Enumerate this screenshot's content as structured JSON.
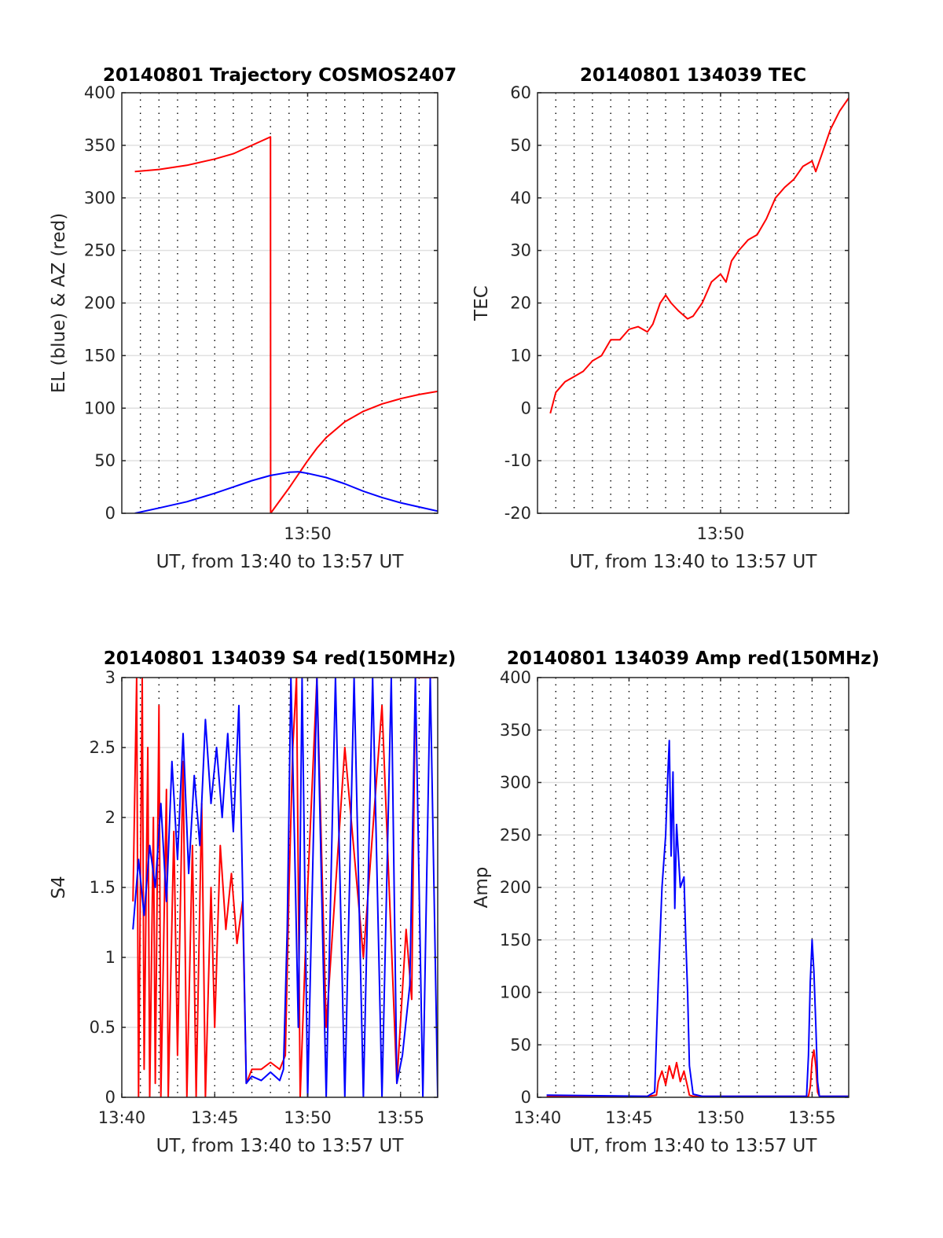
{
  "chart_data": [
    {
      "type": "line",
      "title": "20140801 Trajectory COSMOS2407",
      "xlabel": "UT, from 13:40 to 13:57 UT",
      "ylabel": "EL (blue) & AZ (red)",
      "xlim": [
        0,
        17
      ],
      "ylim": [
        0,
        400
      ],
      "x_ticks": [
        {
          "x": 10,
          "label": "13:50"
        }
      ],
      "y_ticks": [
        {
          "y": 0,
          "label": "0"
        },
        {
          "y": 50,
          "label": "50"
        },
        {
          "y": 100,
          "label": "100"
        },
        {
          "y": 150,
          "label": "150"
        },
        {
          "y": 200,
          "label": "200"
        },
        {
          "y": 250,
          "label": "250"
        },
        {
          "y": 300,
          "label": "300"
        },
        {
          "y": 350,
          "label": "350"
        },
        {
          "y": 400,
          "label": "400"
        }
      ],
      "grid": {
        "horizontal": true,
        "vertical_dotted_step": 1
      },
      "series": [
        {
          "color": "#ff0000",
          "points": [
            [
              0.7,
              325
            ],
            [
              2,
              327
            ],
            [
              3.5,
              331
            ],
            [
              5,
              337
            ],
            [
              6,
              342
            ],
            [
              7,
              350
            ],
            [
              7.5,
              354
            ],
            [
              8,
              358
            ],
            [
              8.01,
              0
            ],
            [
              8.5,
              12
            ],
            [
              9,
              24
            ],
            [
              9.5,
              37
            ],
            [
              10,
              50
            ],
            [
              10.5,
              62
            ],
            [
              11,
              72
            ],
            [
              12,
              87
            ],
            [
              13,
              97
            ],
            [
              14,
              104
            ],
            [
              15,
              109
            ],
            [
              16,
              113
            ],
            [
              17,
              116
            ]
          ]
        },
        {
          "color": "#0000ff",
          "points": [
            [
              0.7,
              0
            ],
            [
              2,
              5
            ],
            [
              3.5,
              11
            ],
            [
              5,
              19
            ],
            [
              6,
              25
            ],
            [
              7,
              31
            ],
            [
              8,
              36
            ],
            [
              9,
              39
            ],
            [
              9.5,
              39.5
            ],
            [
              10,
              38
            ],
            [
              11,
              34
            ],
            [
              12,
              28
            ],
            [
              13,
              21
            ],
            [
              14,
              15
            ],
            [
              15,
              10
            ],
            [
              16,
              6
            ],
            [
              17,
              2
            ]
          ]
        }
      ]
    },
    {
      "type": "line",
      "title": "20140801 134039 TEC",
      "xlabel": "UT, from 13:40 to 13:57 UT",
      "ylabel": "TEC",
      "xlim": [
        0,
        17
      ],
      "ylim": [
        -20,
        60
      ],
      "x_ticks": [
        {
          "x": 10,
          "label": "13:50"
        }
      ],
      "y_ticks": [
        {
          "y": -20,
          "label": "-20"
        },
        {
          "y": -10,
          "label": "-10"
        },
        {
          "y": 0,
          "label": "0"
        },
        {
          "y": 10,
          "label": "10"
        },
        {
          "y": 20,
          "label": "20"
        },
        {
          "y": 30,
          "label": "30"
        },
        {
          "y": 40,
          "label": "40"
        },
        {
          "y": 50,
          "label": "50"
        },
        {
          "y": 60,
          "label": "60"
        }
      ],
      "grid": {
        "horizontal": true,
        "vertical_dotted_step": 1
      },
      "series": [
        {
          "color": "#ff0000",
          "points": [
            [
              0.7,
              -1
            ],
            [
              1,
              3
            ],
            [
              1.5,
              5
            ],
            [
              2,
              6
            ],
            [
              2.5,
              7
            ],
            [
              3,
              9
            ],
            [
              3.5,
              10
            ],
            [
              4,
              13
            ],
            [
              4.5,
              13
            ],
            [
              5,
              15
            ],
            [
              5.5,
              15.5
            ],
            [
              6,
              14.5
            ],
            [
              6.3,
              16
            ],
            [
              6.7,
              20
            ],
            [
              7,
              21.5
            ],
            [
              7.3,
              20
            ],
            [
              7.7,
              18.5
            ],
            [
              8.2,
              17
            ],
            [
              8.5,
              17.5
            ],
            [
              9,
              20
            ],
            [
              9.5,
              24
            ],
            [
              10,
              25.5
            ],
            [
              10.3,
              24
            ],
            [
              10.6,
              28
            ],
            [
              11,
              30
            ],
            [
              11.5,
              32
            ],
            [
              12,
              33
            ],
            [
              12.5,
              36
            ],
            [
              13,
              40
            ],
            [
              13.5,
              42
            ],
            [
              14,
              43.5
            ],
            [
              14.5,
              46
            ],
            [
              15,
              47
            ],
            [
              15.2,
              45
            ],
            [
              15.5,
              48
            ],
            [
              16,
              53
            ],
            [
              16.5,
              56.5
            ],
            [
              17,
              59
            ]
          ]
        }
      ]
    },
    {
      "type": "line",
      "title": "20140801 134039 S4 red(150MHz)",
      "xlabel": "UT, from 13:40 to 13:57 UT",
      "ylabel": "S4",
      "xlim": [
        0,
        17
      ],
      "ylim": [
        0,
        3
      ],
      "x_ticks": [
        {
          "x": 0,
          "label": "13:40"
        },
        {
          "x": 5,
          "label": "13:45"
        },
        {
          "x": 10,
          "label": "13:50"
        },
        {
          "x": 15,
          "label": "13:55"
        }
      ],
      "y_ticks": [
        {
          "y": 0,
          "label": "0"
        },
        {
          "y": 0.5,
          "label": "0.5"
        },
        {
          "y": 1,
          "label": "1"
        },
        {
          "y": 1.5,
          "label": "1.5"
        },
        {
          "y": 2,
          "label": "2"
        },
        {
          "y": 2.5,
          "label": "2.5"
        },
        {
          "y": 3,
          "label": "3"
        }
      ],
      "grid": {
        "horizontal": true,
        "vertical_dotted_step": 1
      },
      "series": [
        {
          "color": "#ff0000",
          "points": [
            [
              0.6,
              1.4
            ],
            [
              0.8,
              3
            ],
            [
              0.9,
              0
            ],
            [
              1.1,
              3
            ],
            [
              1.2,
              0.2
            ],
            [
              1.4,
              2.5
            ],
            [
              1.5,
              0
            ],
            [
              1.7,
              2
            ],
            [
              1.8,
              0.1
            ],
            [
              2,
              2.8
            ],
            [
              2.1,
              0
            ],
            [
              2.4,
              2.2
            ],
            [
              2.5,
              0
            ],
            [
              2.8,
              1.9
            ],
            [
              3,
              0.3
            ],
            [
              3.3,
              2.4
            ],
            [
              3.5,
              0
            ],
            [
              3.8,
              1.8
            ],
            [
              4,
              0
            ],
            [
              4.3,
              2.1
            ],
            [
              4.5,
              0
            ],
            [
              4.8,
              1.5
            ],
            [
              5,
              0.5
            ],
            [
              5.3,
              1.8
            ],
            [
              5.6,
              1.2
            ],
            [
              5.9,
              1.6
            ],
            [
              6.2,
              1.1
            ],
            [
              6.5,
              1.4
            ],
            [
              6.7,
              0.1
            ],
            [
              7,
              0.2
            ],
            [
              7.5,
              0.2
            ],
            [
              8,
              0.25
            ],
            [
              8.5,
              0.2
            ],
            [
              8.8,
              0.3
            ],
            [
              9,
              1.5
            ],
            [
              9.2,
              2.5
            ],
            [
              9.4,
              3
            ],
            [
              9.6,
              0
            ],
            [
              10,
              1.5
            ],
            [
              10.5,
              3
            ],
            [
              11,
              0.5
            ],
            [
              12,
              2.5
            ],
            [
              13,
              1
            ],
            [
              14,
              2.8
            ],
            [
              14.8,
              0.1
            ],
            [
              15.3,
              1.2
            ],
            [
              15.6,
              0.7
            ],
            [
              15.8,
              3
            ],
            [
              16.5,
              3
            ],
            [
              17,
              3
            ]
          ]
        },
        {
          "color": "#0000ff",
          "points": [
            [
              0.6,
              1.2
            ],
            [
              0.9,
              1.7
            ],
            [
              1.2,
              1.3
            ],
            [
              1.5,
              1.8
            ],
            [
              1.8,
              1.5
            ],
            [
              2.1,
              2.1
            ],
            [
              2.4,
              1.4
            ],
            [
              2.7,
              2.4
            ],
            [
              3,
              1.7
            ],
            [
              3.3,
              2.6
            ],
            [
              3.6,
              1.6
            ],
            [
              3.9,
              2.3
            ],
            [
              4.2,
              1.8
            ],
            [
              4.5,
              2.7
            ],
            [
              4.8,
              2.1
            ],
            [
              5.1,
              2.5
            ],
            [
              5.4,
              2
            ],
            [
              5.7,
              2.6
            ],
            [
              6,
              1.9
            ],
            [
              6.3,
              2.8
            ],
            [
              6.5,
              1.5
            ],
            [
              6.7,
              0.1
            ],
            [
              7,
              0.15
            ],
            [
              7.5,
              0.12
            ],
            [
              8,
              0.18
            ],
            [
              8.5,
              0.12
            ],
            [
              8.7,
              0.2
            ],
            [
              8.9,
              1.2
            ],
            [
              9.1,
              3
            ],
            [
              9.3,
              1.8
            ],
            [
              9.5,
              0.5
            ],
            [
              9.7,
              3
            ],
            [
              10,
              0
            ],
            [
              10.5,
              3
            ],
            [
              11,
              0
            ],
            [
              11.5,
              3
            ],
            [
              12,
              0
            ],
            [
              12.5,
              3
            ],
            [
              13,
              0
            ],
            [
              13.5,
              3
            ],
            [
              14,
              0
            ],
            [
              14.5,
              3
            ],
            [
              14.8,
              0.1
            ],
            [
              15.1,
              0.3
            ],
            [
              15.5,
              0.8
            ],
            [
              15.8,
              3
            ],
            [
              16.2,
              0
            ],
            [
              16.6,
              3
            ],
            [
              17,
              0
            ]
          ]
        }
      ]
    },
    {
      "type": "line",
      "title": "20140801 134039 Amp red(150MHz)",
      "xlabel": "UT, from 13:40 to 13:57 UT",
      "ylabel": "Amp",
      "xlim": [
        0,
        17
      ],
      "ylim": [
        0,
        400
      ],
      "x_ticks": [
        {
          "x": 0,
          "label": "13:40"
        },
        {
          "x": 5,
          "label": "13:45"
        },
        {
          "x": 10,
          "label": "13:50"
        },
        {
          "x": 15,
          "label": "13:55"
        }
      ],
      "y_ticks": [
        {
          "y": 0,
          "label": "0"
        },
        {
          "y": 50,
          "label": "50"
        },
        {
          "y": 100,
          "label": "100"
        },
        {
          "y": 150,
          "label": "150"
        },
        {
          "y": 200,
          "label": "200"
        },
        {
          "y": 250,
          "label": "250"
        },
        {
          "y": 300,
          "label": "300"
        },
        {
          "y": 350,
          "label": "350"
        },
        {
          "y": 400,
          "label": "400"
        }
      ],
      "grid": {
        "horizontal": true,
        "vertical_dotted_step": 1
      },
      "series": [
        {
          "color": "#ff0000",
          "points": [
            [
              0.5,
              1
            ],
            [
              6,
              1
            ],
            [
              6.5,
              2
            ],
            [
              6.6,
              15
            ],
            [
              6.8,
              25
            ],
            [
              7,
              12
            ],
            [
              7.2,
              30
            ],
            [
              7.4,
              18
            ],
            [
              7.6,
              33
            ],
            [
              7.8,
              15
            ],
            [
              8,
              25
            ],
            [
              8.2,
              10
            ],
            [
              8.3,
              2
            ],
            [
              8.5,
              1
            ],
            [
              14.8,
              1
            ],
            [
              14.9,
              10
            ],
            [
              15,
              35
            ],
            [
              15.1,
              45
            ],
            [
              15.2,
              30
            ],
            [
              15.3,
              5
            ],
            [
              15.4,
              1
            ],
            [
              17,
              1
            ]
          ]
        },
        {
          "color": "#0000ff",
          "points": [
            [
              0.5,
              2
            ],
            [
              6,
              1
            ],
            [
              6.4,
              5
            ],
            [
              6.6,
              110
            ],
            [
              6.8,
              200
            ],
            [
              7,
              250
            ],
            [
              7.1,
              300
            ],
            [
              7.2,
              340
            ],
            [
              7.3,
              230
            ],
            [
              7.4,
              310
            ],
            [
              7.5,
              180
            ],
            [
              7.6,
              260
            ],
            [
              7.8,
              200
            ],
            [
              8,
              210
            ],
            [
              8.1,
              150
            ],
            [
              8.2,
              100
            ],
            [
              8.3,
              30
            ],
            [
              8.5,
              3
            ],
            [
              9,
              1
            ],
            [
              14.7,
              1
            ],
            [
              14.8,
              40
            ],
            [
              14.9,
              110
            ],
            [
              15,
              150
            ],
            [
              15.1,
              120
            ],
            [
              15.2,
              70
            ],
            [
              15.3,
              15
            ],
            [
              15.4,
              1
            ],
            [
              17,
              1
            ]
          ]
        }
      ]
    }
  ]
}
